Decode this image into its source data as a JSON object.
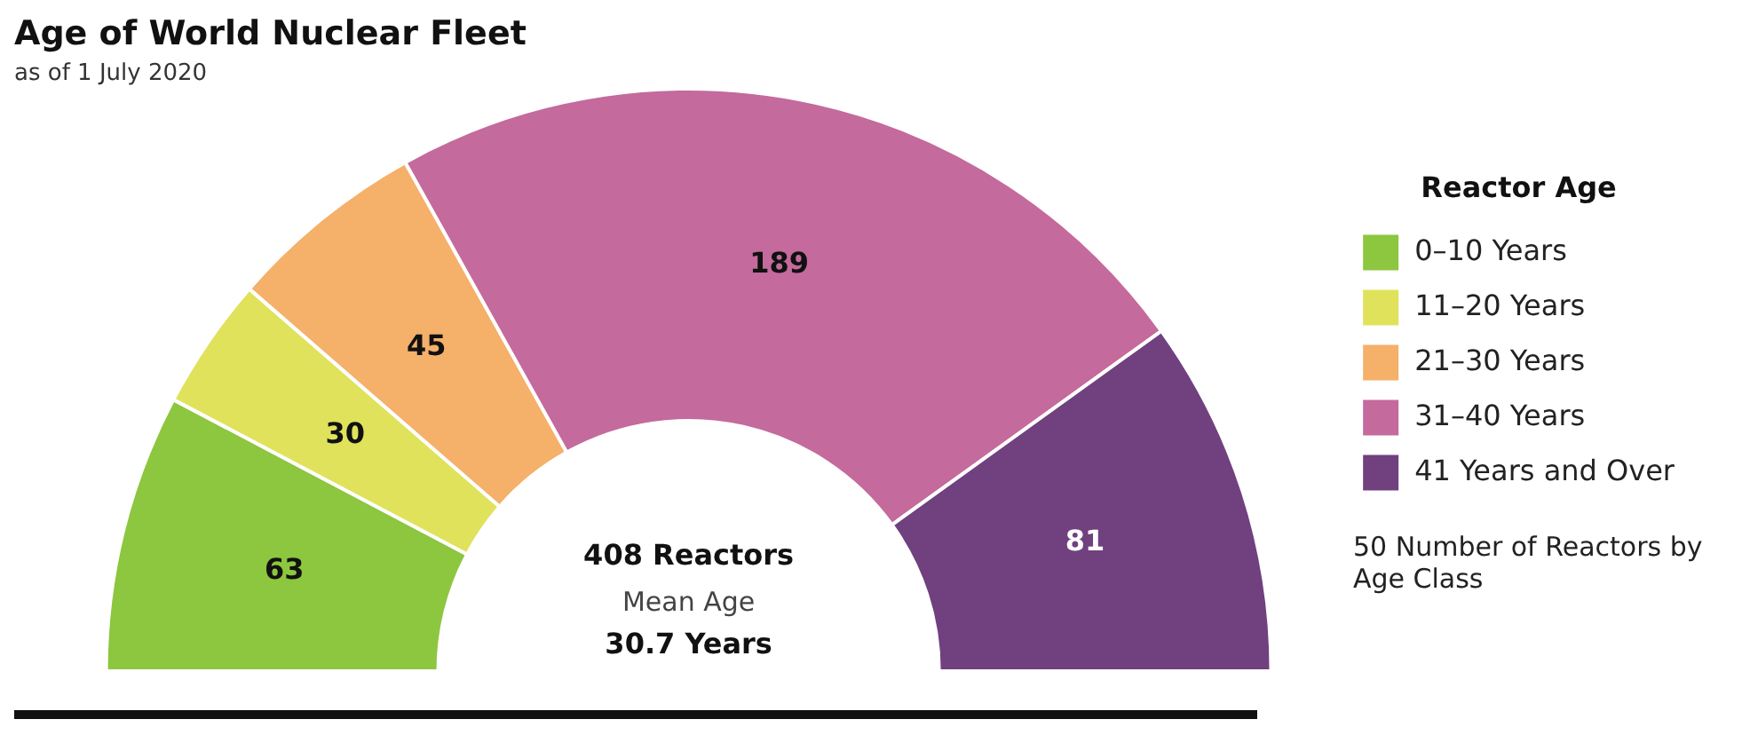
{
  "chart_data": {
    "type": "donut",
    "title": "Age of World Nuclear Fleet",
    "subtitle": "as of 1 July 2020",
    "legend_title": "Reactor Age",
    "categories": [
      "0–10 Years",
      "11–20 Years",
      "21–30 Years",
      "31–40 Years",
      "41 Years and Over"
    ],
    "values": [
      63,
      30,
      45,
      189,
      81
    ],
    "colors": [
      "#8dc63f",
      "#e0e25c",
      "#f5b06a",
      "#c46a9c",
      "#70407f"
    ],
    "data_labels": true,
    "legend": "right",
    "annotations": [
      "408 Reactors",
      "Mean Age",
      "30.7 Years",
      "50 Number of Reactors by Age Class"
    ]
  }
}
